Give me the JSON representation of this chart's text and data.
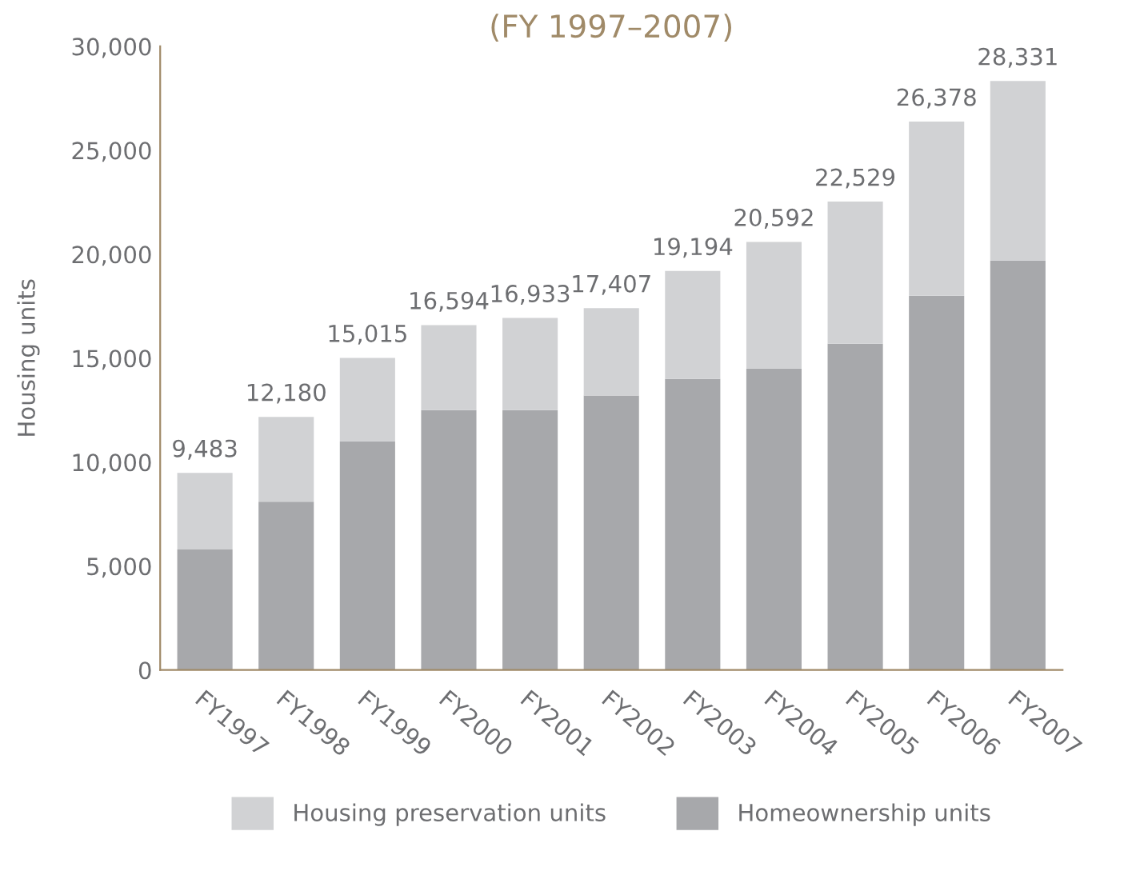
{
  "chart_data": {
    "type": "bar",
    "title": "(FY 1997–2007)",
    "ylabel": "Housing units",
    "categories": [
      "FY1997",
      "FY1998",
      "FY1999",
      "FY2000",
      "FY2001",
      "FY2002",
      "FY2003",
      "FY2004",
      "FY2005",
      "FY2006",
      "FY2007"
    ],
    "stacked": true,
    "series": [
      {
        "name": "Homeownership units",
        "color": "#a7a8ab",
        "values": [
          5800,
          8100,
          11000,
          12500,
          12500,
          13200,
          14000,
          14500,
          15700,
          18000,
          19700
        ]
      },
      {
        "name": "Housing preservation units",
        "color": "#d1d2d4",
        "values": [
          3683,
          4080,
          4015,
          4094,
          4433,
          4207,
          5194,
          6092,
          6829,
          8378,
          8631
        ]
      }
    ],
    "totals": [
      "9,483",
      "12,180",
      "15,015",
      "16,594",
      "16,933",
      "17,407",
      "19,194",
      "20,592",
      "22,529",
      "26,378",
      "28,331"
    ],
    "ylim": [
      0,
      30000
    ],
    "yticks": [
      0,
      {
        "value": 5000,
        "label": "5,000"
      },
      {
        "value": 10000,
        "label": "10,000"
      },
      {
        "value": 15000,
        "label": "15,000"
      },
      {
        "value": 20000,
        "label": "20,000"
      },
      {
        "value": 25000,
        "label": "25,000"
      },
      {
        "value": 30000,
        "label": "30,000"
      }
    ],
    "grid": false,
    "legend": "bottom"
  }
}
